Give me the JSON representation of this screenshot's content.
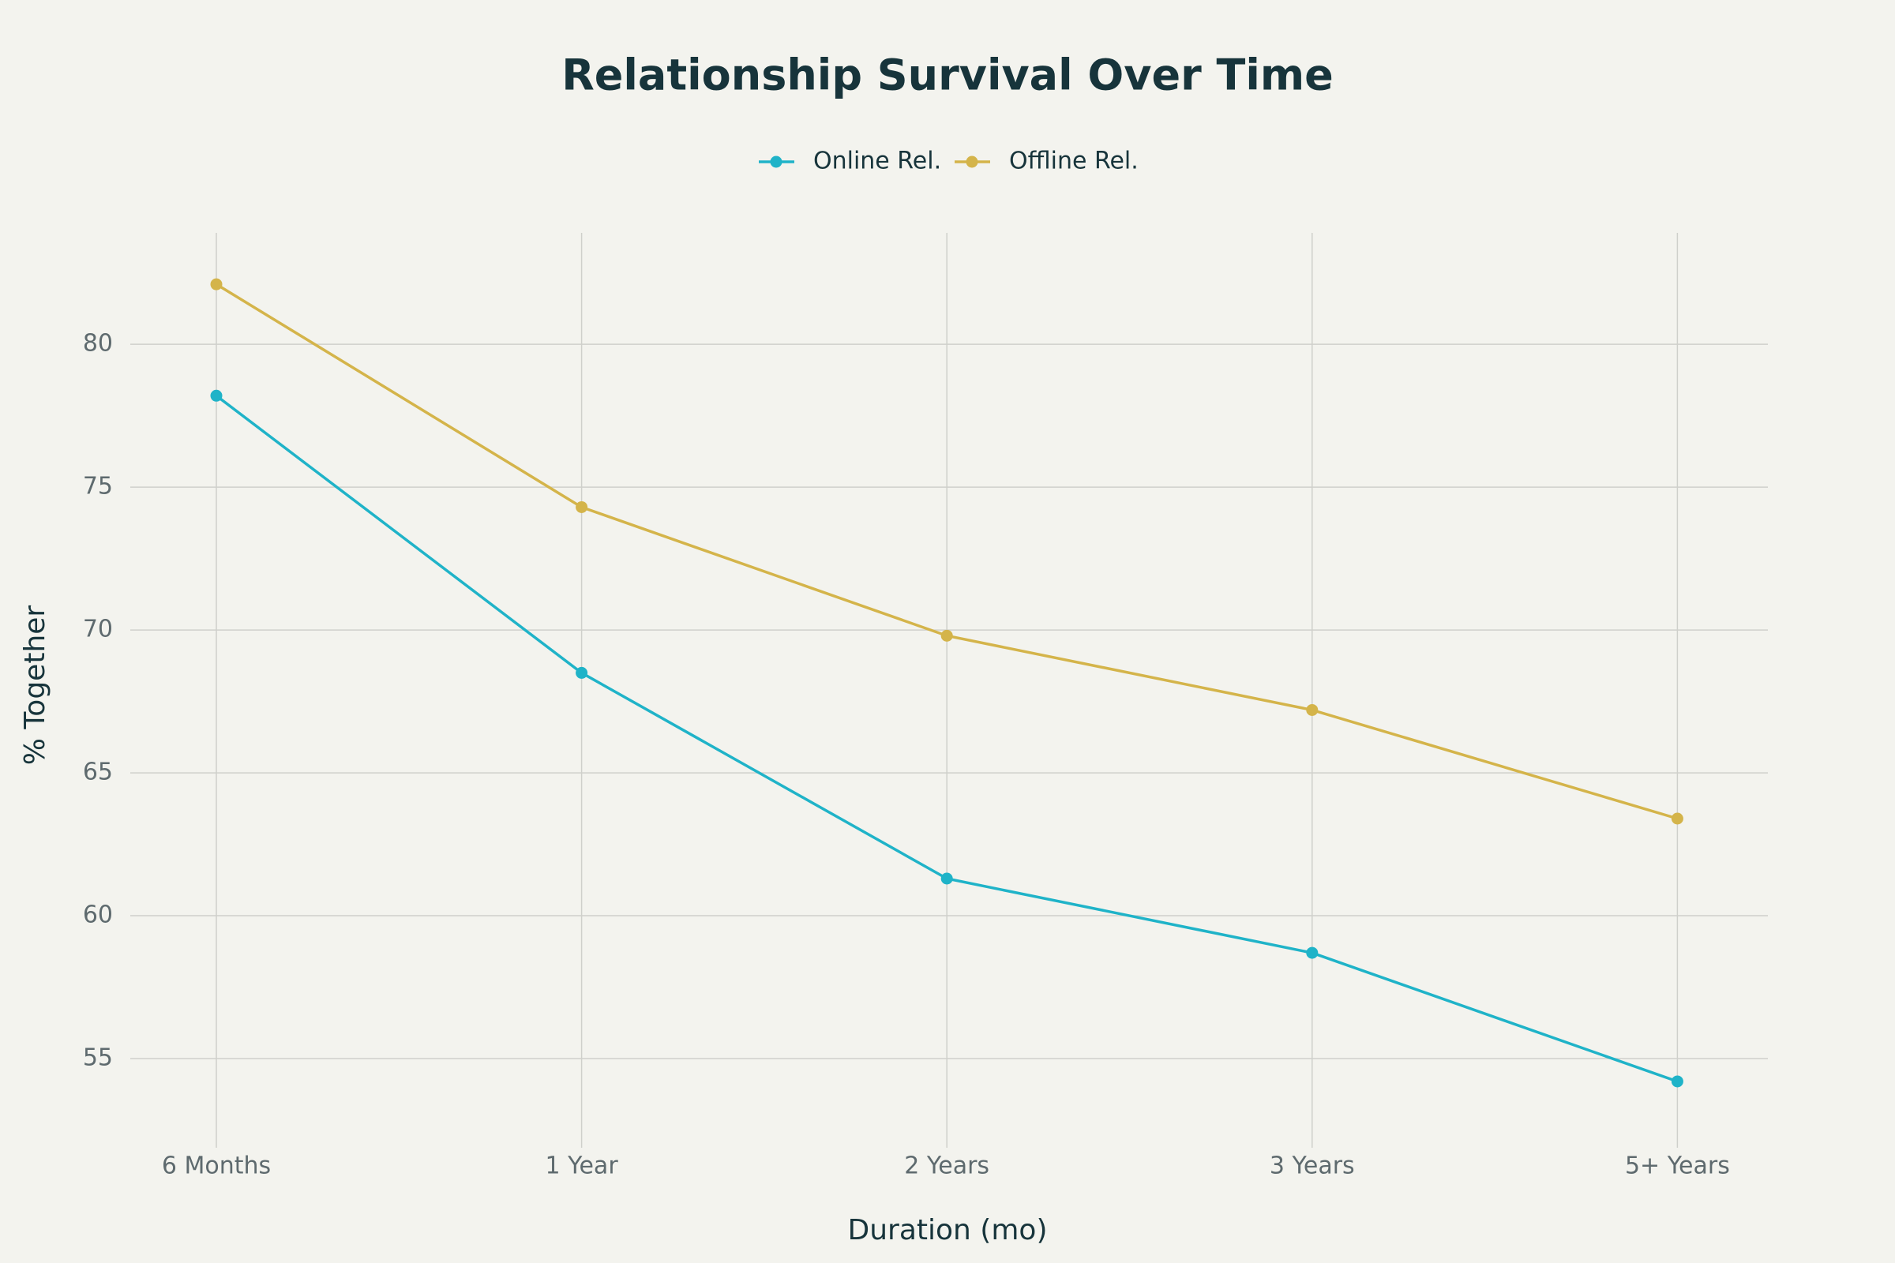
{
  "chart_data": {
    "type": "line",
    "title": "Relationship Survival Over Time",
    "x_label": "Duration (mo)",
    "y_label": "% Together",
    "categories": [
      "6 Months",
      "1 Year",
      "2 Years",
      "3 Years",
      "5+ Years"
    ],
    "series": [
      {
        "name": "Online Rel.",
        "color": "#1fb3c8",
        "values": [
          78.2,
          68.5,
          61.3,
          58.7,
          54.2
        ]
      },
      {
        "name": "Offline Rel.",
        "color": "#d4b44a",
        "values": [
          82.1,
          74.3,
          69.8,
          67.2,
          63.4
        ]
      }
    ],
    "ylim": [
      52.1,
      83.9
    ],
    "yticks": [
      55,
      60,
      65,
      70,
      75,
      80
    ],
    "grid": true,
    "legend": "top"
  }
}
